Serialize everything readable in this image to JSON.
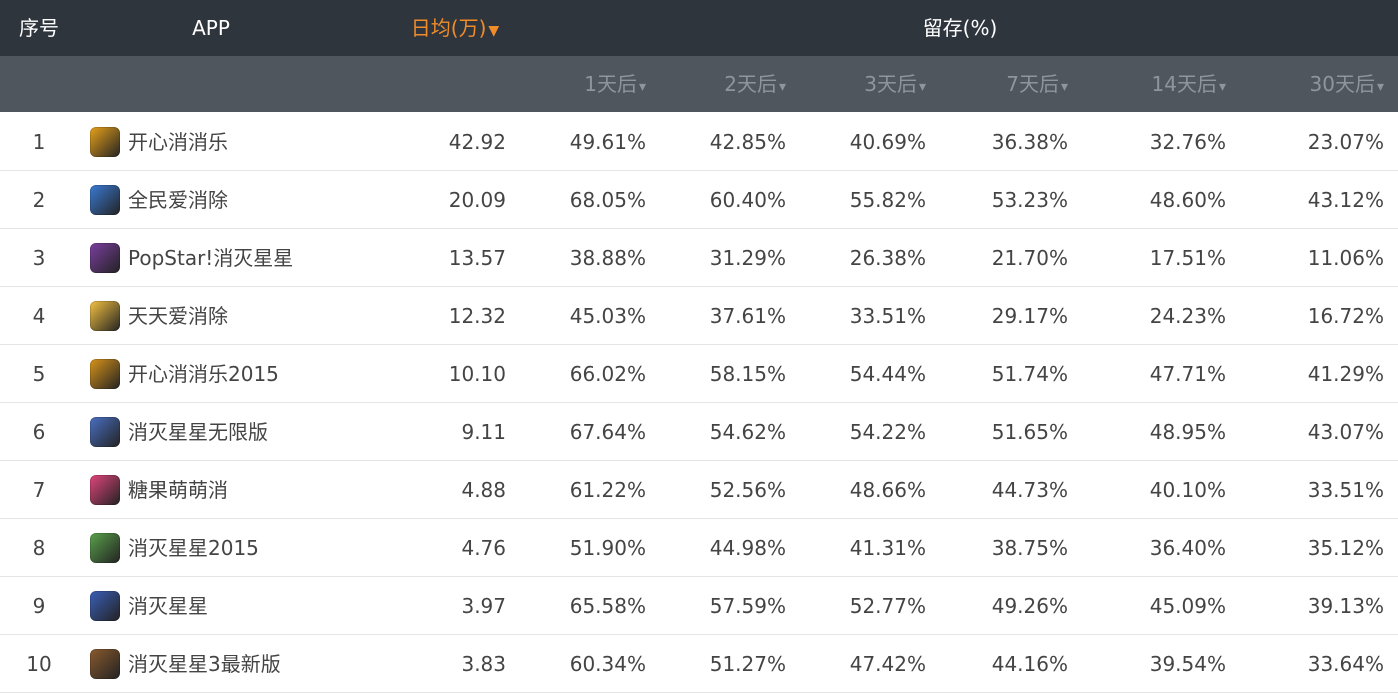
{
  "header": {
    "index_label": "序号",
    "app_label": "APP",
    "daily_label": "日均(万)",
    "daily_sort_arrow": "▼",
    "retention_label": "留存(%)",
    "retention_days": [
      "1天后",
      "2天后",
      "3天后",
      "7天后",
      "14天后",
      "30天后"
    ],
    "sub_arrow": "▾"
  },
  "colors": {
    "header_bg": "#2f353d",
    "subheader_bg": "#50565e",
    "active_sort": "#f08c2a"
  },
  "rows": [
    {
      "index": "1",
      "name": "开心消消乐",
      "daily": "42.92",
      "r1": "49.61%",
      "r2": "42.85%",
      "r3": "40.69%",
      "r7": "36.38%",
      "r14": "32.76%",
      "r30": "23.07%",
      "icon": "happy-elimination-icon",
      "icon_color": "#e8a21a"
    },
    {
      "index": "2",
      "name": "全民爱消除",
      "daily": "20.09",
      "r1": "68.05%",
      "r2": "60.40%",
      "r3": "55.82%",
      "r7": "53.23%",
      "r14": "48.60%",
      "r30": "43.12%",
      "icon": "everyone-loves-elimination-icon",
      "icon_color": "#3a7bd5"
    },
    {
      "index": "3",
      "name": "PopStar!消灭星星",
      "daily": "13.57",
      "r1": "38.88%",
      "r2": "31.29%",
      "r3": "26.38%",
      "r7": "21.70%",
      "r14": "17.51%",
      "r30": "11.06%",
      "icon": "popstar-icon",
      "icon_color": "#7b3fa0"
    },
    {
      "index": "4",
      "name": "天天爱消除",
      "daily": "12.32",
      "r1": "45.03%",
      "r2": "37.61%",
      "r3": "33.51%",
      "r7": "29.17%",
      "r14": "24.23%",
      "r30": "16.72%",
      "icon": "daily-love-elimination-icon",
      "icon_color": "#f5c242"
    },
    {
      "index": "5",
      "name": "开心消消乐2015",
      "daily": "10.10",
      "r1": "66.02%",
      "r2": "58.15%",
      "r3": "54.44%",
      "r7": "51.74%",
      "r14": "47.71%",
      "r30": "41.29%",
      "icon": "happy-elimination-2015-icon",
      "icon_color": "#d8941a"
    },
    {
      "index": "6",
      "name": "消灭星星无限版",
      "daily": "9.11",
      "r1": "67.64%",
      "r2": "54.62%",
      "r3": "54.22%",
      "r7": "51.65%",
      "r14": "48.95%",
      "r30": "43.07%",
      "icon": "popstar-unlimited-icon",
      "icon_color": "#4a6fc2"
    },
    {
      "index": "7",
      "name": "糖果萌萌消",
      "daily": "4.88",
      "r1": "61.22%",
      "r2": "52.56%",
      "r3": "48.66%",
      "r7": "44.73%",
      "r14": "40.10%",
      "r30": "33.51%",
      "icon": "candy-elimination-icon",
      "icon_color": "#e0457b"
    },
    {
      "index": "8",
      "name": "消灭星星2015",
      "daily": "4.76",
      "r1": "51.90%",
      "r2": "44.98%",
      "r3": "41.31%",
      "r7": "38.75%",
      "r14": "36.40%",
      "r30": "35.12%",
      "icon": "popstar-2015-icon",
      "icon_color": "#5aa14b"
    },
    {
      "index": "9",
      "name": "消灭星星",
      "daily": "3.97",
      "r1": "65.58%",
      "r2": "57.59%",
      "r3": "52.77%",
      "r7": "49.26%",
      "r14": "45.09%",
      "r30": "39.13%",
      "icon": "popstar-classic-icon",
      "icon_color": "#3b5fb8"
    },
    {
      "index": "10",
      "name": "消灭星星3最新版",
      "daily": "3.83",
      "r1": "60.34%",
      "r2": "51.27%",
      "r3": "47.42%",
      "r7": "44.16%",
      "r14": "39.54%",
      "r30": "33.64%",
      "icon": "popstar-3-icon",
      "icon_color": "#8a5a2e"
    }
  ]
}
